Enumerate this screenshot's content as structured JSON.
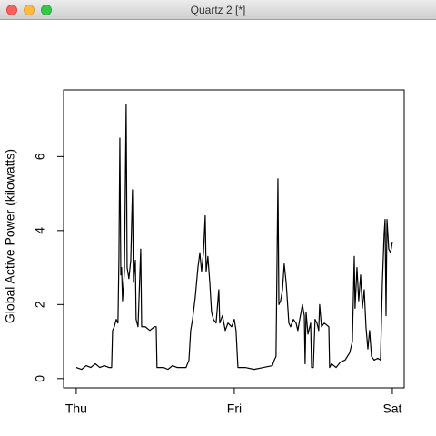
{
  "window": {
    "title": "Quartz 2 [*]"
  },
  "chart_data": {
    "type": "line",
    "ylabel": "Global Active Power (kilowatts)",
    "color": "#000000",
    "xlim": [
      -0.08,
      2.075
    ],
    "ylim": [
      -0.25,
      7.8
    ],
    "xticks": [
      {
        "value": 0,
        "label": "Thu"
      },
      {
        "value": 1,
        "label": "Fri"
      },
      {
        "value": 2,
        "label": "Sat"
      }
    ],
    "yticks": [
      0,
      2,
      4,
      6
    ],
    "x": [
      0,
      0.034,
      0.063,
      0.092,
      0.121,
      0.149,
      0.178,
      0.207,
      0.224,
      0.23,
      0.241,
      0.253,
      0.264,
      0.27,
      0.276,
      0.282,
      0.287,
      0.293,
      0.305,
      0.316,
      0.322,
      0.333,
      0.345,
      0.356,
      0.362,
      0.374,
      0.379,
      0.391,
      0.408,
      0.414,
      0.437,
      0.466,
      0.494,
      0.506,
      0.511,
      0.552,
      0.58,
      0.609,
      0.638,
      0.667,
      0.695,
      0.713,
      0.724,
      0.736,
      0.753,
      0.77,
      0.782,
      0.793,
      0.805,
      0.816,
      0.822,
      0.833,
      0.845,
      0.856,
      0.868,
      0.885,
      0.902,
      0.908,
      0.925,
      0.943,
      0.96,
      0.983,
      1.0,
      1.011,
      1.023,
      1.069,
      1.126,
      1.184,
      1.241,
      1.253,
      1.264,
      1.276,
      1.282,
      1.293,
      1.305,
      1.316,
      1.328,
      1.339,
      1.345,
      1.356,
      1.374,
      1.391,
      1.402,
      1.414,
      1.431,
      1.443,
      1.448,
      1.454,
      1.466,
      1.483,
      1.489,
      1.5,
      1.511,
      1.523,
      1.534,
      1.54,
      1.552,
      1.569,
      1.598,
      1.603,
      1.615,
      1.644,
      1.672,
      1.701,
      1.73,
      1.747,
      1.759,
      1.764,
      1.776,
      1.787,
      1.799,
      1.81,
      1.822,
      1.833,
      1.845,
      1.856,
      1.868,
      1.885,
      1.908,
      1.925,
      1.937,
      1.948,
      1.954,
      1.96,
      1.966,
      1.977,
      1.989,
      2.0
    ],
    "values": [
      0.3,
      0.25,
      0.35,
      0.3,
      0.4,
      0.3,
      0.35,
      0.3,
      0.3,
      1.3,
      1.4,
      1.6,
      1.5,
      3.2,
      6.5,
      2.8,
      3.0,
      2.1,
      2.9,
      7.4,
      3.0,
      2.7,
      3.2,
      5.1,
      2.6,
      3.2,
      1.6,
      1.4,
      3.5,
      1.4,
      1.4,
      1.3,
      1.4,
      1.4,
      0.3,
      0.3,
      0.25,
      0.35,
      0.3,
      0.3,
      0.3,
      0.5,
      1.3,
      1.6,
      2.2,
      3.0,
      3.4,
      2.9,
      3.4,
      4.4,
      2.9,
      3.3,
      2.6,
      1.8,
      1.6,
      1.5,
      2.4,
      1.5,
      1.7,
      1.3,
      1.5,
      1.4,
      1.6,
      1.3,
      0.3,
      0.3,
      0.25,
      0.3,
      0.35,
      0.5,
      0.6,
      5.4,
      2.0,
      2.1,
      2.4,
      3.1,
      2.6,
      1.9,
      1.5,
      1.4,
      1.6,
      1.5,
      1.3,
      1.6,
      2.0,
      1.7,
      0.4,
      1.8,
      1.2,
      1.5,
      0.3,
      0.3,
      1.6,
      1.5,
      1.3,
      2.0,
      1.4,
      1.5,
      1.4,
      0.3,
      0.4,
      0.3,
      0.45,
      0.5,
      0.7,
      1.0,
      3.3,
      1.9,
      3.0,
      2.1,
      2.8,
      1.9,
      2.4,
      1.4,
      0.8,
      1.3,
      0.6,
      0.5,
      0.55,
      0.5,
      2.6,
      3.9,
      4.3,
      1.7,
      4.3,
      3.5,
      3.4,
      3.7
    ]
  }
}
